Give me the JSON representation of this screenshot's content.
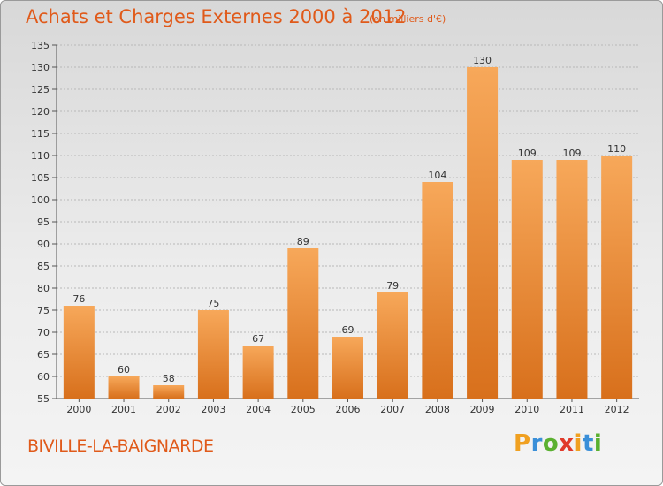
{
  "title": "Achats et Charges Externes 2000 à 2012",
  "subtitle": "(en milliers d'€)",
  "commune": "BIVILLE-LA-BAIGNARDE",
  "logo": {
    "letters": [
      "P",
      "r",
      "o",
      "x",
      "i",
      "t",
      "i"
    ],
    "colors": [
      "#f0a020",
      "#3a8fd8",
      "#5ab030",
      "#e03a2a",
      "#f0a020",
      "#3a8fd8",
      "#5ab030"
    ]
  },
  "colors": {
    "title": "#e05a1a",
    "bar_light": "#f7a85a",
    "bar_dark": "#d8701c",
    "grid": "#b8b8b8"
  },
  "chart_data": {
    "type": "bar",
    "categories": [
      "2000",
      "2001",
      "2002",
      "2003",
      "2004",
      "2005",
      "2006",
      "2007",
      "2008",
      "2009",
      "2010",
      "2011",
      "2012"
    ],
    "values": [
      76,
      60,
      58,
      75,
      67,
      89,
      69,
      79,
      104,
      130,
      109,
      109,
      110
    ],
    "ylim": [
      55,
      135
    ],
    "yticks": [
      55,
      60,
      65,
      70,
      75,
      80,
      85,
      90,
      95,
      100,
      105,
      110,
      115,
      120,
      125,
      130,
      135
    ],
    "grid": "horizontal",
    "xlabel": "",
    "ylabel": ""
  }
}
